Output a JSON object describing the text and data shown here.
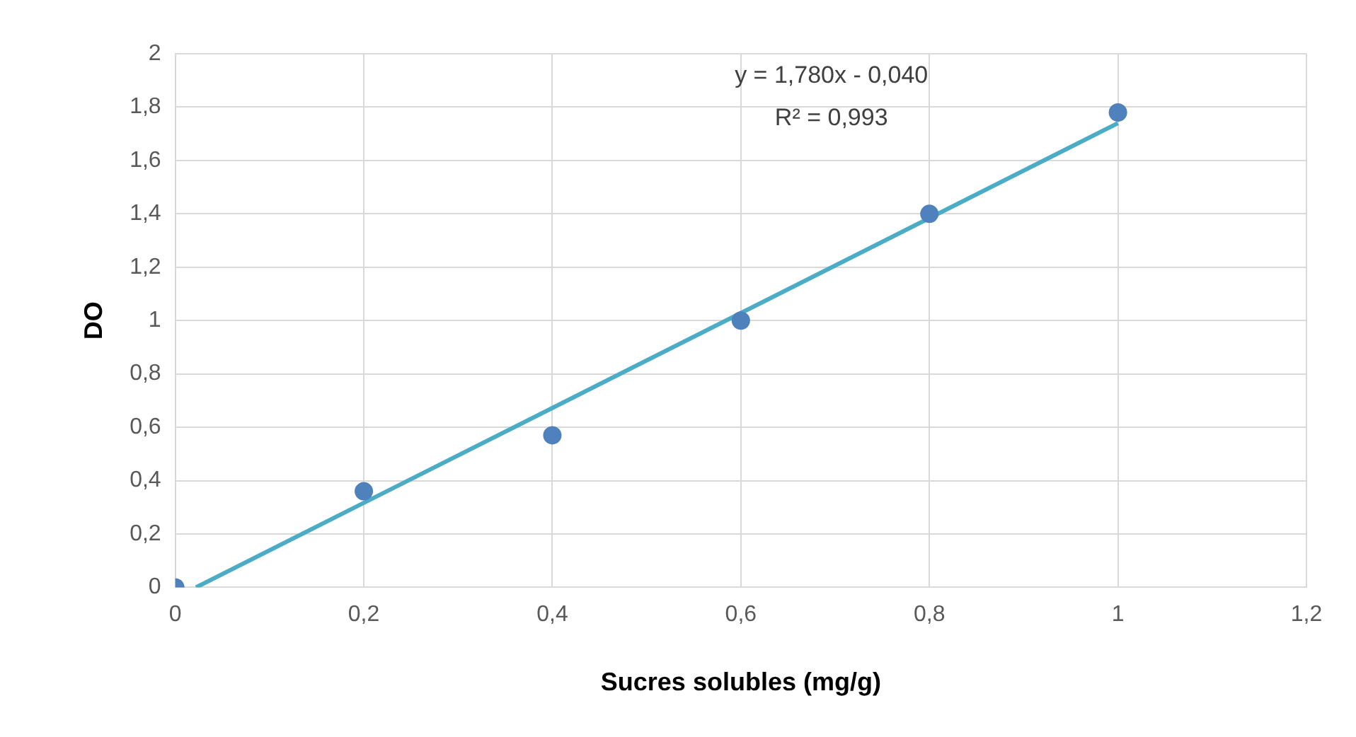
{
  "chart_data": {
    "type": "scatter",
    "xlabel": "Sucres solubles (mg/g)",
    "ylabel": "DO",
    "series": [
      {
        "type": "scatter",
        "color": "#4f81bd",
        "x": [
          0,
          0.2,
          0.4,
          0.6,
          0.8,
          1
        ],
        "values": [
          0,
          0.36,
          0.57,
          1.0,
          1.4,
          1.78
        ],
        "marker": "circle"
      },
      {
        "type": "line",
        "color": "#4bacc6",
        "x": [
          0.022,
          1
        ],
        "values": [
          0,
          1.74
        ],
        "marker": "none",
        "line_style": "solid"
      }
    ],
    "xlim": [
      0,
      1.2
    ],
    "ylim": [
      0,
      2
    ],
    "xticks": [
      0,
      {
        "value": 0.2,
        "label": "0,2"
      },
      {
        "value": 0.4,
        "label": "0,4"
      },
      {
        "value": 0.6,
        "label": "0,6"
      },
      {
        "value": 0.8,
        "label": "0,8"
      },
      1,
      {
        "value": 1.2,
        "label": "1,2"
      }
    ],
    "yticks": [
      0,
      {
        "value": 0.2,
        "label": "0,2"
      },
      {
        "value": 0.4,
        "label": "0,4"
      },
      {
        "value": 0.6,
        "label": "0,6"
      },
      {
        "value": 0.8,
        "label": "0,8"
      },
      1,
      {
        "value": 1.2,
        "label": "1,2"
      },
      {
        "value": 1.4,
        "label": "1,4"
      },
      {
        "value": 1.6,
        "label": "1,6"
      },
      {
        "value": 1.8,
        "label": "1,8"
      },
      2
    ],
    "grid": true,
    "legend": false,
    "annotations": [
      "y = 1,780x - 0,040",
      "R² = 0,993"
    ]
  }
}
